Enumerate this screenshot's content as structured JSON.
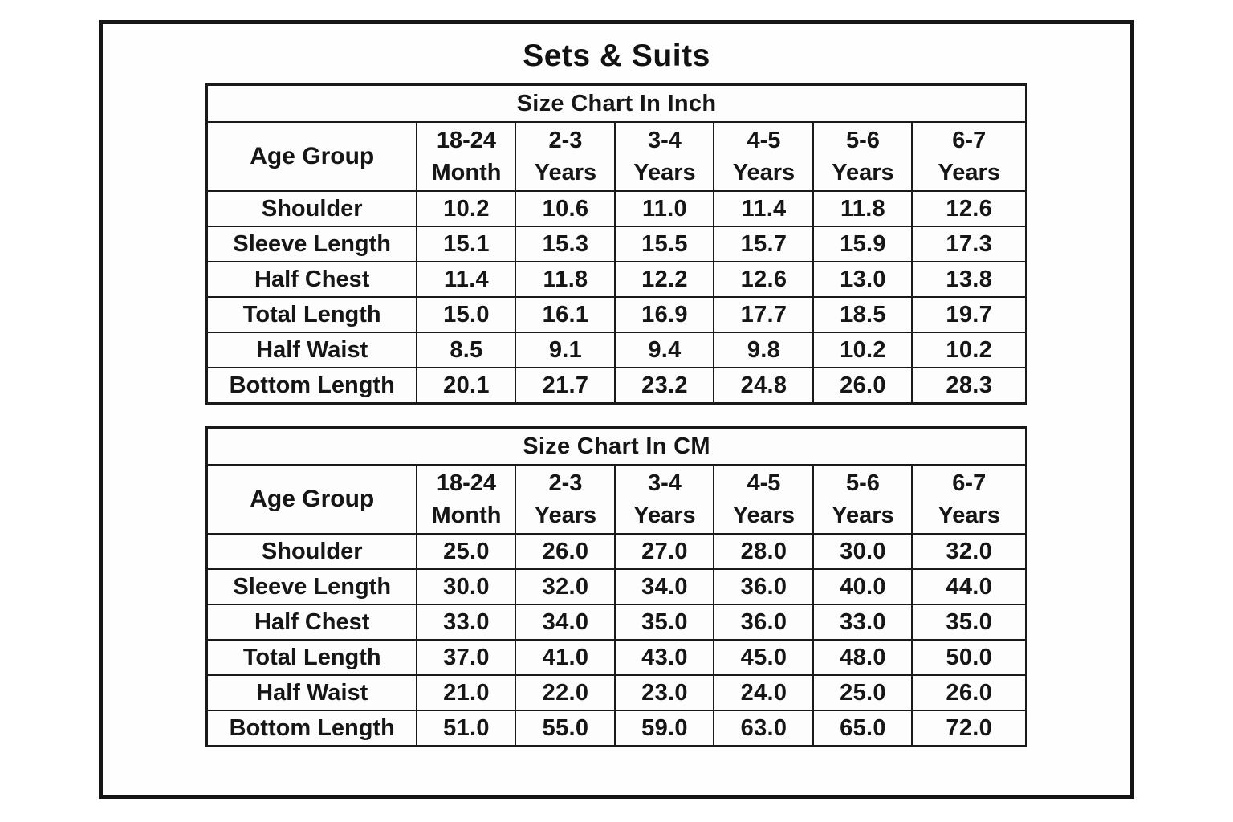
{
  "page": {
    "title": "Sets & Suits"
  },
  "tables": [
    {
      "title": "Size Chart In Inch",
      "corner_label": "Age Group",
      "columns": [
        {
          "top": "18-24",
          "bottom": "Month"
        },
        {
          "top": "2-3",
          "bottom": "Years"
        },
        {
          "top": "3-4",
          "bottom": "Years"
        },
        {
          "top": "4-5",
          "bottom": "Years"
        },
        {
          "top": "5-6",
          "bottom": "Years"
        },
        {
          "top": "6-7",
          "bottom": "Years"
        }
      ],
      "rows": [
        {
          "label": "Shoulder",
          "values": [
            "10.2",
            "10.6",
            "11.0",
            "11.4",
            "11.8",
            "12.6"
          ]
        },
        {
          "label": "Sleeve Length",
          "values": [
            "15.1",
            "15.3",
            "15.5",
            "15.7",
            "15.9",
            "17.3"
          ]
        },
        {
          "label": "Half Chest",
          "values": [
            "11.4",
            "11.8",
            "12.2",
            "12.6",
            "13.0",
            "13.8"
          ]
        },
        {
          "label": "Total Length",
          "values": [
            "15.0",
            "16.1",
            "16.9",
            "17.7",
            "18.5",
            "19.7"
          ]
        },
        {
          "label": "Half Waist",
          "values": [
            "8.5",
            "9.1",
            "9.4",
            "9.8",
            "10.2",
            "10.2"
          ]
        },
        {
          "label": "Bottom Length",
          "values": [
            "20.1",
            "21.7",
            "23.2",
            "24.8",
            "26.0",
            "28.3"
          ]
        }
      ]
    },
    {
      "title": "Size Chart In CM",
      "corner_label": "Age Group",
      "columns": [
        {
          "top": "18-24",
          "bottom": "Month"
        },
        {
          "top": "2-3",
          "bottom": "Years"
        },
        {
          "top": "3-4",
          "bottom": "Years"
        },
        {
          "top": "4-5",
          "bottom": "Years"
        },
        {
          "top": "5-6",
          "bottom": "Years"
        },
        {
          "top": "6-7",
          "bottom": "Years"
        }
      ],
      "rows": [
        {
          "label": "Shoulder",
          "values": [
            "25.0",
            "26.0",
            "27.0",
            "28.0",
            "30.0",
            "32.0"
          ]
        },
        {
          "label": "Sleeve Length",
          "values": [
            "30.0",
            "32.0",
            "34.0",
            "36.0",
            "40.0",
            "44.0"
          ]
        },
        {
          "label": "Half Chest",
          "values": [
            "33.0",
            "34.0",
            "35.0",
            "36.0",
            "33.0",
            "35.0"
          ]
        },
        {
          "label": "Total Length",
          "values": [
            "37.0",
            "41.0",
            "43.0",
            "45.0",
            "48.0",
            "50.0"
          ]
        },
        {
          "label": "Half Waist",
          "values": [
            "21.0",
            "22.0",
            "23.0",
            "24.0",
            "25.0",
            "26.0"
          ]
        },
        {
          "label": "Bottom Length",
          "values": [
            "51.0",
            "55.0",
            "59.0",
            "63.0",
            "65.0",
            "72.0"
          ]
        }
      ]
    }
  ],
  "chart_data": [
    {
      "type": "table",
      "title": "Size Chart In Inch",
      "unit": "inch",
      "columns": [
        "Age Group",
        "18-24 Month",
        "2-3 Years",
        "3-4 Years",
        "4-5 Years",
        "5-6 Years",
        "6-7 Years"
      ],
      "rows": [
        [
          "Shoulder",
          10.2,
          10.6,
          11.0,
          11.4,
          11.8,
          12.6
        ],
        [
          "Sleeve Length",
          15.1,
          15.3,
          15.5,
          15.7,
          15.9,
          17.3
        ],
        [
          "Half Chest",
          11.4,
          11.8,
          12.2,
          12.6,
          13.0,
          13.8
        ],
        [
          "Total Length",
          15.0,
          16.1,
          16.9,
          17.7,
          18.5,
          19.7
        ],
        [
          "Half Waist",
          8.5,
          9.1,
          9.4,
          9.8,
          10.2,
          10.2
        ],
        [
          "Bottom Length",
          20.1,
          21.7,
          23.2,
          24.8,
          26.0,
          28.3
        ]
      ]
    },
    {
      "type": "table",
      "title": "Size Chart In CM",
      "unit": "cm",
      "columns": [
        "Age Group",
        "18-24 Month",
        "2-3 Years",
        "3-4 Years",
        "4-5 Years",
        "5-6 Years",
        "6-7 Years"
      ],
      "rows": [
        [
          "Shoulder",
          25.0,
          26.0,
          27.0,
          28.0,
          30.0,
          32.0
        ],
        [
          "Sleeve Length",
          30.0,
          32.0,
          34.0,
          36.0,
          40.0,
          44.0
        ],
        [
          "Half Chest",
          33.0,
          34.0,
          35.0,
          36.0,
          33.0,
          35.0
        ],
        [
          "Total Length",
          37.0,
          41.0,
          43.0,
          45.0,
          48.0,
          50.0
        ],
        [
          "Half Waist",
          21.0,
          22.0,
          23.0,
          24.0,
          25.0,
          26.0
        ],
        [
          "Bottom Length",
          51.0,
          55.0,
          59.0,
          63.0,
          65.0,
          72.0
        ]
      ]
    }
  ]
}
